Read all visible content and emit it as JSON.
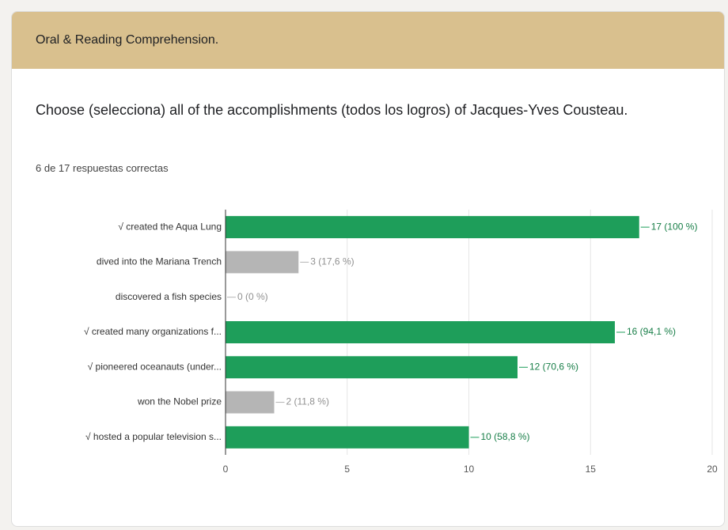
{
  "header": {
    "title": "Oral & Reading Comprehension."
  },
  "question": {
    "text": "Choose (selecciona) all of the accomplishments (todos los logros) of Jacques-Yves Cousteau.",
    "summary": "6 de 17 respuestas correctas"
  },
  "chart_data": {
    "type": "barh",
    "categories": [
      "√ created the Aqua Lung",
      "dived into the Mariana Trench",
      "discovered a fish species",
      "√ created many organizations f...",
      "√ pioneered oceanauts (under...",
      "won the Nobel prize",
      "√ hosted a popular television s..."
    ],
    "values": [
      17,
      3,
      0,
      16,
      12,
      2,
      10
    ],
    "value_labels": [
      "17 (100 %)",
      "3 (17,6 %)",
      "0 (0 %)",
      "16 (94,1 %)",
      "12 (70,6 %)",
      "2 (11,8 %)",
      "10 (58,8 %)"
    ],
    "colors": [
      "#1e9e5a",
      "#b5b5b5",
      "#b5b5b5",
      "#1e9e5a",
      "#1e9e5a",
      "#b5b5b5",
      "#1e9e5a"
    ],
    "xlim": [
      0,
      20
    ],
    "xticks": [
      0,
      5,
      10,
      15,
      20
    ],
    "grid": true
  }
}
